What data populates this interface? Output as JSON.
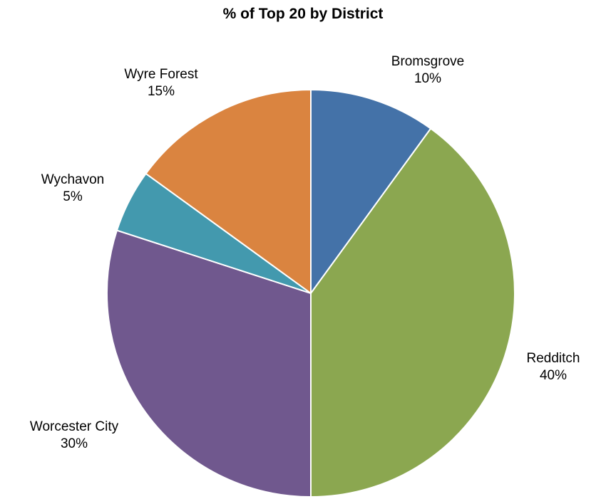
{
  "chart_data": {
    "type": "pie",
    "title": "% of Top 20 by District",
    "categories": [
      "Bromsgrove",
      "Redditch",
      "Worcester City",
      "Wychavon",
      "Wyre Forest"
    ],
    "values": [
      10,
      40,
      30,
      5,
      15
    ],
    "value_labels": [
      "10%",
      "40%",
      "30%",
      "5%",
      "15%"
    ],
    "colors": [
      "#4472A8",
      "#8BA750",
      "#70588E",
      "#4399AE",
      "#DA8440"
    ],
    "start_angle": "12 o'clock",
    "direction": "clockwise",
    "legend": "none",
    "data_labels": "outside, category name and percentage"
  }
}
